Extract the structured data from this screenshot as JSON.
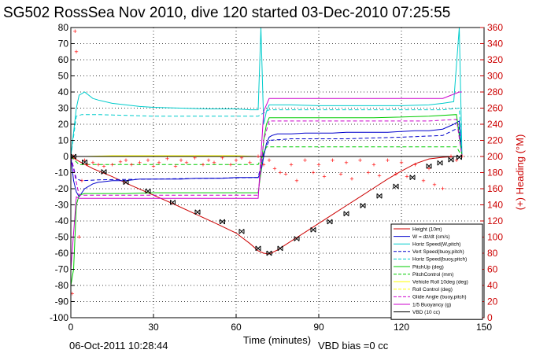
{
  "chart_data": {
    "type": "line",
    "title": "SG502 RossSea Nov 2010, dive 120 started 03-Dec-2010 07:25:55",
    "xlabel": "Time (minutes)",
    "ylabel_right": "(+) Heading (°M)",
    "footer_left": "06-Oct-2011 10:28:44",
    "footer_right": "VBD bias =0 cc",
    "xlim": [
      0,
      150
    ],
    "ylim": [
      -100,
      80
    ],
    "ylim_right": [
      0,
      360
    ],
    "x_ticks": [
      "0",
      "30",
      "60",
      "90",
      "120",
      "150"
    ],
    "y_ticks": [
      "80",
      "70",
      "60",
      "50",
      "40",
      "30",
      "20",
      "10",
      "0",
      "-10",
      "-20",
      "-30",
      "-40",
      "-50",
      "-60",
      "-70",
      "-80",
      "-90",
      "-100"
    ],
    "y_ticks_right": [
      "360",
      "340",
      "320",
      "300",
      "280",
      "260",
      "240",
      "220",
      "200",
      "180",
      "160",
      "140",
      "120",
      "100",
      "80",
      "60",
      "40",
      "20",
      "0"
    ],
    "grid": true,
    "legend_position": "bottom-right",
    "series": [
      {
        "name": "Height (10m)",
        "color": "#cc0000",
        "style": "solid",
        "x": [
          0,
          1,
          3,
          8,
          15,
          22,
          30,
          38,
          45,
          52,
          60,
          65,
          68,
          70,
          72,
          75,
          80,
          85,
          90,
          95,
          100,
          105,
          110,
          115,
          120,
          125,
          130,
          135,
          140,
          142
        ],
        "values": [
          0,
          -1,
          -3,
          -7.5,
          -12.5,
          -18,
          -24,
          -30,
          -35.5,
          -41,
          -47.5,
          -54,
          -58.5,
          -60,
          -60.5,
          -58,
          -52.5,
          -47,
          -41.5,
          -36,
          -30.5,
          -25,
          -19.5,
          -14,
          -9,
          -4.5,
          -1.5,
          -0.5,
          0,
          0
        ]
      },
      {
        "name": "W = dz/dt (cm/s)",
        "color": "#0000cc",
        "style": "solid",
        "x": [
          0,
          1,
          2,
          3,
          5,
          8,
          10,
          15,
          20,
          25,
          30,
          35,
          40,
          45,
          50,
          55,
          60,
          65,
          68,
          69,
          70,
          71,
          72,
          73,
          75,
          80,
          85,
          90,
          95,
          100,
          105,
          110,
          115,
          120,
          125,
          130,
          135,
          139,
          141,
          142
        ],
        "values": [
          0,
          -15,
          -22,
          -25,
          -20,
          -17,
          -16,
          -15,
          -15,
          -14,
          -14,
          -14,
          -14,
          -13.5,
          -13.5,
          -13.5,
          -13,
          -13,
          -13,
          -10,
          0,
          8,
          12,
          13,
          14,
          14,
          14.5,
          14.5,
          14.5,
          15,
          15,
          15,
          15,
          15.5,
          16,
          16,
          17,
          20,
          22,
          0
        ]
      },
      {
        "name": "Horiz Speed(W,pitch)",
        "color": "#00cccc",
        "style": "solid",
        "x": [
          0,
          2,
          3,
          5,
          8,
          10,
          15,
          20,
          25,
          30,
          40,
          50,
          60,
          65,
          68,
          69,
          70,
          71,
          72,
          75,
          80,
          90,
          100,
          110,
          120,
          130,
          135,
          139,
          141,
          142
        ],
        "values": [
          0,
          30,
          38,
          40,
          36,
          35,
          33,
          32,
          31,
          30.5,
          30,
          29.5,
          29.5,
          29,
          29,
          80,
          20,
          28,
          32,
          32,
          32,
          31.5,
          31.5,
          31.5,
          31.5,
          32,
          33,
          34,
          80,
          0
        ]
      },
      {
        "name": "Vert Speed(buoy,pitch)",
        "color": "#0000cc",
        "style": "dashed",
        "x": [
          0,
          2,
          4,
          10,
          30,
          50,
          68,
          70,
          72,
          80,
          100,
          120,
          135,
          141,
          142
        ],
        "values": [
          0,
          -14,
          -15,
          -14.5,
          -14,
          -13.5,
          -13,
          2,
          10,
          11,
          11,
          12,
          13,
          18,
          0
        ]
      },
      {
        "name": "Horiz Speed(buoy,pitch)",
        "color": "#00cccc",
        "style": "dashed",
        "x": [
          0,
          2,
          4,
          10,
          30,
          50,
          68,
          70,
          72,
          80,
          100,
          120,
          135,
          141,
          142
        ],
        "values": [
          0,
          25,
          26,
          26,
          25,
          25,
          25,
          27,
          29,
          29,
          29,
          29,
          29,
          30,
          0
        ]
      },
      {
        "name": "PitchUp (deg)",
        "color": "#00cc00",
        "style": "solid",
        "x": [
          0,
          1,
          2,
          3,
          5,
          10,
          20,
          30,
          40,
          50,
          60,
          68,
          69,
          70,
          71,
          72,
          75,
          90,
          110,
          130,
          140,
          142
        ],
        "values": [
          -80,
          -70,
          -30,
          -24,
          -23,
          -23,
          -23,
          -22.5,
          -22.5,
          -22.5,
          -22.5,
          -22.5,
          -10,
          10,
          20,
          24,
          24,
          24,
          24,
          25,
          26,
          0
        ]
      },
      {
        "name": "PitchControl (mm)",
        "color": "#00cc00",
        "style": "dashed",
        "x": [
          0,
          3,
          10,
          30,
          50,
          68,
          71,
          75,
          100,
          130,
          140,
          142
        ],
        "values": [
          0,
          -5,
          -5,
          -5,
          -5,
          -5,
          6,
          6,
          6,
          6,
          6,
          0
        ]
      },
      {
        "name": "Vehicle Roll 10deg (deg)",
        "color": "#ffff00",
        "style": "solid",
        "x": [
          0,
          5,
          15,
          30,
          45,
          60,
          68,
          72,
          90,
          110,
          130,
          142
        ],
        "values": [
          0,
          0,
          0.5,
          0.5,
          0.5,
          0.5,
          0,
          0,
          0,
          0,
          0,
          0
        ]
      },
      {
        "name": "Roll Control (deg)",
        "color": "#ffff00",
        "style": "dashed",
        "x": [
          0,
          70,
          142
        ],
        "values": [
          0,
          0,
          0
        ]
      },
      {
        "name": "Glide Angle (buoy,pitch)",
        "color": "#cc00cc",
        "style": "dashed",
        "x": [
          0,
          3,
          10,
          30,
          50,
          68,
          70,
          72,
          100,
          130,
          140,
          142
        ],
        "values": [
          0,
          -24,
          -24,
          -24,
          -24,
          -24,
          10,
          22,
          22,
          22,
          23,
          0
        ]
      },
      {
        "name": "1/5 Buoyancy (g)",
        "color": "#cc00cc",
        "style": "solid",
        "x": [
          0,
          2,
          3,
          10,
          30,
          50,
          68,
          69,
          70,
          72,
          100,
          135,
          141,
          142
        ],
        "values": [
          -70,
          -25,
          -26,
          -26,
          -26,
          -26,
          -26,
          0,
          28,
          36,
          36,
          36,
          40,
          40
        ]
      },
      {
        "name": "VBD (10 cc)",
        "color": "#000000",
        "style": "solid",
        "x": [
          0,
          142
        ],
        "values": [
          0,
          0
        ]
      }
    ],
    "heading_series": {
      "name": "Heading",
      "color": "#ff0000",
      "axis": "right",
      "x": [
        0.5,
        1,
        1.5,
        2,
        3,
        4,
        5,
        6,
        8,
        10,
        12,
        15,
        18,
        20,
        22,
        25,
        28,
        30,
        32,
        35,
        38,
        40,
        42,
        45,
        48,
        50,
        52,
        55,
        58,
        60,
        62,
        65,
        68,
        70,
        72,
        74,
        76,
        78,
        80,
        82,
        85,
        88,
        90,
        92,
        95,
        98,
        100,
        102,
        105,
        108,
        110,
        112,
        115,
        118,
        120,
        122,
        125,
        128,
        130,
        132,
        135,
        138,
        140,
        142
      ],
      "values": [
        30,
        200,
        355,
        330,
        100,
        170,
        195,
        190,
        192,
        190,
        188,
        190,
        193,
        195,
        190,
        192,
        195,
        188,
        192,
        197,
        188,
        195,
        192,
        198,
        190,
        195,
        192,
        198,
        190,
        195,
        198,
        192,
        200,
        190,
        195,
        185,
        180,
        178,
        190,
        170,
        195,
        180,
        190,
        175,
        195,
        178,
        192,
        172,
        195,
        180,
        190,
        176,
        195,
        178,
        192,
        175,
        190,
        170,
        185,
        165,
        160,
        200,
        195,
        200
      ]
    },
    "markers": {
      "color": "#000000",
      "x": [
        1,
        5,
        12,
        20,
        28,
        37,
        46,
        55,
        62,
        68,
        72,
        76,
        82,
        88,
        94,
        100,
        106,
        112,
        118,
        124,
        130,
        134,
        138,
        141
      ],
      "values": [
        0,
        -3.5,
        -9.5,
        -16,
        -21.5,
        -28.5,
        -34.5,
        -40.5,
        -46.5,
        -57,
        -60,
        -57,
        -51,
        -45.5,
        -40.5,
        -35.5,
        -30.5,
        -24.5,
        -18.5,
        -13,
        -6,
        -4,
        -2,
        -0.5
      ]
    }
  }
}
